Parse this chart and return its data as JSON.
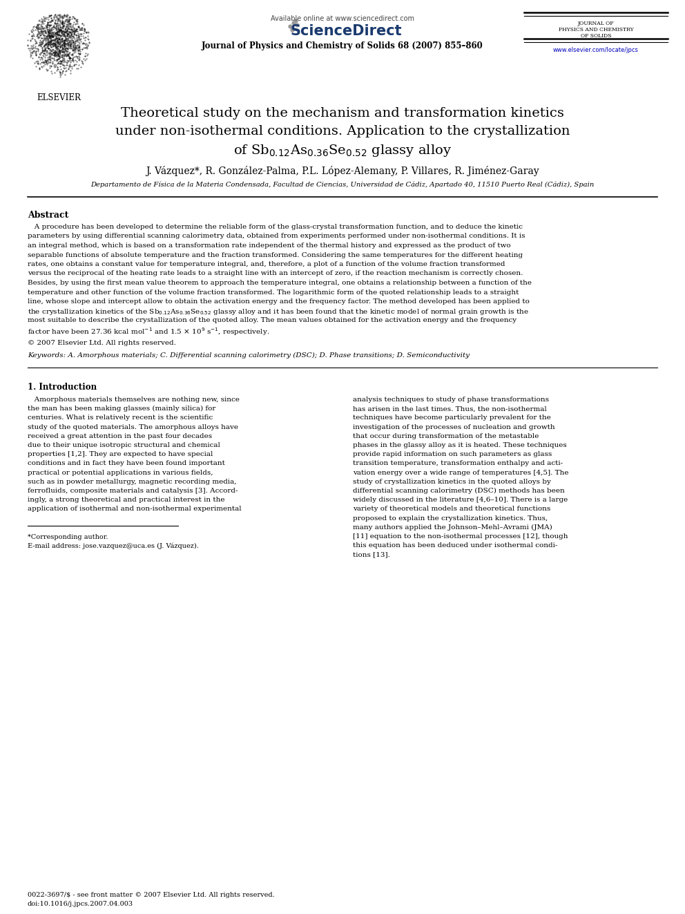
{
  "page_width": 9.92,
  "page_height": 13.23,
  "dpi": 100,
  "background_color": "#ffffff",
  "header": {
    "available_online": "Available online at www.sciencedirect.com",
    "journal_name_bold": "Journal of Physics and Chemistry of Solids 68 (2007) 855–860",
    "journal_right_line1": "JOURNAL OF",
    "journal_right_line2": "PHYSICS AND CHEMISTRY",
    "journal_right_line3": "OF SOLIDS",
    "journal_url": "www.elsevier.com/locate/jpcs"
  },
  "title_line1": "Theoretical study on the mechanism and transformation kinetics",
  "title_line2": "under non-isothermal conditions. Application to the crystallization",
  "title_line3": "of Sb$_{0.12}$As$_{0.36}$Se$_{0.52}$ glassy alloy",
  "authors": "J. Vázquez*, R. González-Palma, P.L. López-Alemany, P. Villares, R. Jiménez-Garay",
  "affiliation": "Departamento de Física de la Materia Condensada, Facultad de Ciencias, Universidad de Cádiz, Apartado 40, 11510 Puerto Real (Cádiz), Spain",
  "abstract_title": "Abstract",
  "abstract_lines": [
    "   A procedure has been developed to determine the reliable form of the glass-crystal transformation function, and to deduce the kinetic",
    "parameters by using differential scanning calorimetry data, obtained from experiments performed under non-isothermal conditions. It is",
    "an integral method, which is based on a transformation rate independent of the thermal history and expressed as the product of two",
    "separable functions of absolute temperature and the fraction transformed. Considering the same temperatures for the different heating",
    "rates, one obtains a constant value for temperature integral, and, therefore, a plot of a function of the volume fraction transformed",
    "versus the reciprocal of the heating rate leads to a straight line with an intercept of zero, if the reaction mechanism is correctly chosen.",
    "Besides, by using the first mean value theorem to approach the temperature integral, one obtains a relationship between a function of the",
    "temperature and other function of the volume fraction transformed. The logarithmic form of the quoted relationship leads to a straight",
    "line, whose slope and intercept allow to obtain the activation energy and the frequency factor. The method developed has been applied to",
    "the crystallization kinetics of the Sb$_{0.12}$As$_{0.36}$Se$_{0.52}$ glassy alloy and it has been found that the kinetic model of normal grain growth is the",
    "most suitable to describe the crystallization of the quoted alloy. The mean values obtained for the activation energy and the frequency",
    "factor have been 27.36 kcal mol$^{-1}$ and 1.5 $\\times$ 10$^{9}$ s$^{-1}$, respectively."
  ],
  "copyright": "© 2007 Elsevier Ltd. All rights reserved.",
  "keywords": "Keywords: A. Amorphous materials; C. Differential scanning calorimetry (DSC); D. Phase transitions; D. Semiconductivity",
  "section1_title": "1. Introduction",
  "col1_lines": [
    "   Amorphous materials themselves are nothing new, since",
    "the man has been making glasses (mainly silica) for",
    "centuries. What is relatively recent is the scientific",
    "study of the quoted materials. The amorphous alloys have",
    "received a great attention in the past four decades",
    "due to their unique isotropic structural and chemical",
    "properties [1,2]. They are expected to have special",
    "conditions and in fact they have been found important",
    "practical or potential applications in various fields,",
    "such as in powder metallurgy, magnetic recording media,",
    "ferrofluids, composite materials and catalysis [3]. Accord-",
    "ingly, a strong theoretical and practical interest in the",
    "application of isothermal and non-isothermal experimental"
  ],
  "col2_lines": [
    "analysis techniques to study of phase transformations",
    "has arisen in the last times. Thus, the non-isothermal",
    "techniques have become particularly prevalent for the",
    "investigation of the processes of nucleation and growth",
    "that occur during transformation of the metastable",
    "phases in the glassy alloy as it is heated. These techniques",
    "provide rapid information on such parameters as glass",
    "transition temperature, transformation enthalpy and acti-",
    "vation energy over a wide range of temperatures [4,5]. The",
    "study of crystallization kinetics in the quoted alloys by",
    "differential scanning calorimetry (DSC) methods has been",
    "widely discussed in the literature [4,6–10]. There is a large",
    "variety of theoretical models and theoretical functions",
    "proposed to explain the crystallization kinetics. Thus,",
    "many authors applied the Johnson–Mehl–Avrami (JMA)",
    "[11] equation to the non-isothermal processes [12], though",
    "this equation has been deduced under isothermal condi-",
    "tions [13]."
  ],
  "footnote_line": "*Corresponding author.",
  "footnote_email": "E-mail address: jose.vazquez@uca.es (J. Vázquez).",
  "footer_issn": "0022-3697/$ - see front matter © 2007 Elsevier Ltd. All rights reserved.",
  "footer_doi": "doi:10.1016/j.jpcs.2007.04.003"
}
